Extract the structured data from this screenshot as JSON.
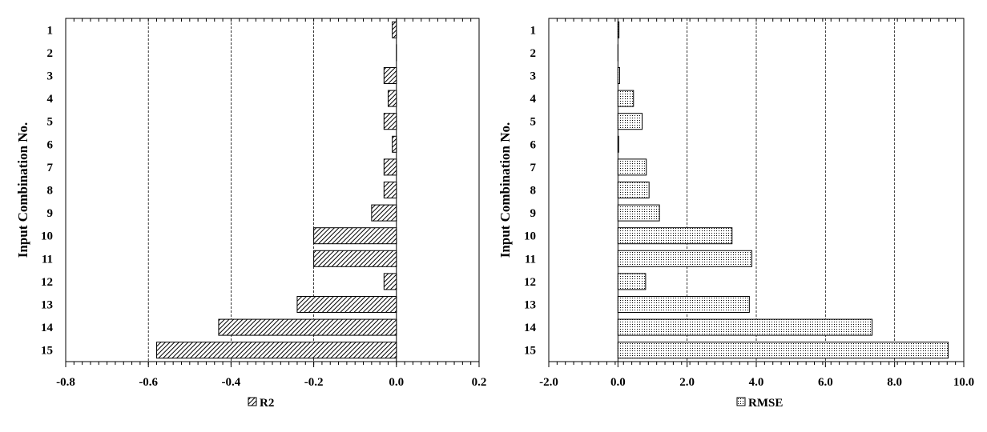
{
  "chart_data": [
    {
      "type": "bar",
      "orientation": "horizontal",
      "ylabel": "Input Combination No.",
      "categories": [
        "1",
        "2",
        "3",
        "4",
        "5",
        "6",
        "7",
        "8",
        "9",
        "10",
        "11",
        "12",
        "13",
        "14",
        "15"
      ],
      "xlim": [
        -0.8,
        0.2
      ],
      "xticks": [
        "-0.8",
        "-0.6",
        "-0.4",
        "-0.2",
        "0.0",
        "0.2"
      ],
      "grid": "vertical dashed",
      "legend_position": "bottom",
      "series": [
        {
          "name": "R2",
          "pattern": "diagonal-hatch",
          "values": [
            -0.01,
            0.0,
            -0.03,
            -0.02,
            -0.03,
            -0.01,
            -0.03,
            -0.03,
            -0.06,
            -0.2,
            -0.2,
            -0.03,
            -0.24,
            -0.43,
            -0.58
          ]
        }
      ]
    },
    {
      "type": "bar",
      "orientation": "horizontal",
      "ylabel": "Input Combination No.",
      "categories": [
        "1",
        "2",
        "3",
        "4",
        "5",
        "6",
        "7",
        "8",
        "9",
        "10",
        "11",
        "12",
        "13",
        "14",
        "15"
      ],
      "xlim": [
        -2.0,
        10.0
      ],
      "xticks": [
        "-2.0",
        "0.0",
        "2.0",
        "4.0",
        "6.0",
        "8.0",
        "10.0"
      ],
      "grid": "vertical dashed",
      "legend_position": "bottom",
      "series": [
        {
          "name": "RMSE",
          "pattern": "dotted",
          "values": [
            0.03,
            0.0,
            0.05,
            0.45,
            0.7,
            0.02,
            0.82,
            0.9,
            1.2,
            3.3,
            3.87,
            0.8,
            3.8,
            7.35,
            9.55
          ]
        }
      ]
    }
  ]
}
